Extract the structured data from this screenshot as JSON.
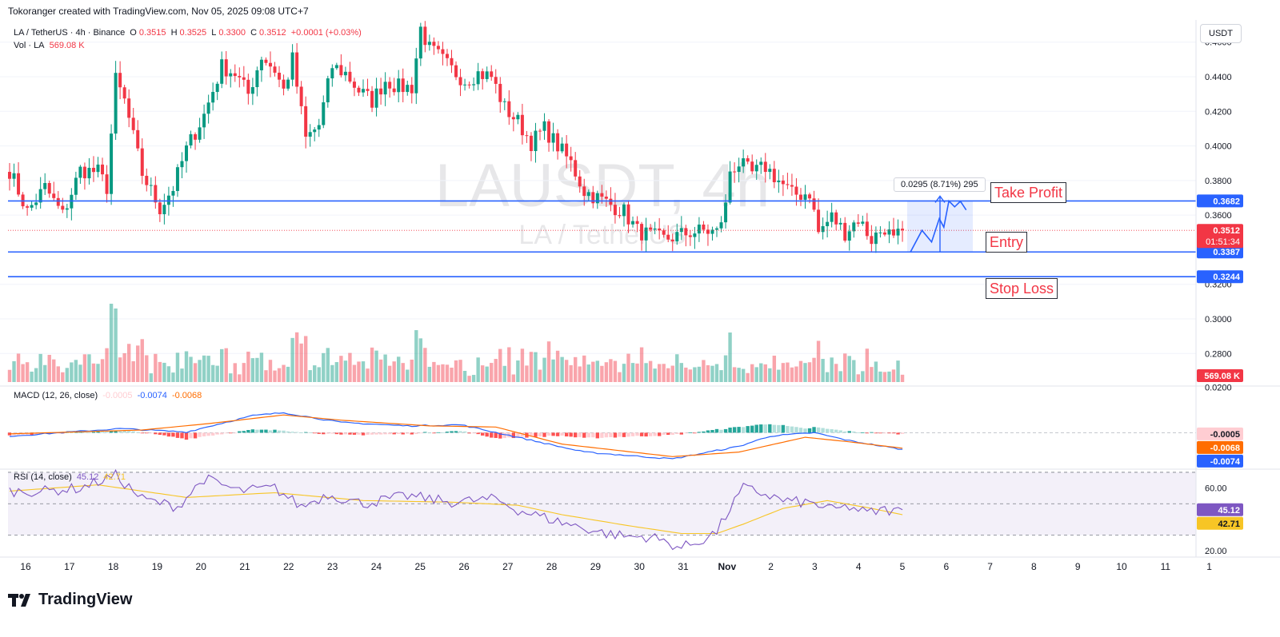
{
  "header": {
    "created_line": "Tokoranger created with TradingView.com, Nov 05, 2025 09:08 UTC+7",
    "symbol_line": "LA / TetherUS · 4h · Binance",
    "o_label": "O",
    "o_value": "0.3515",
    "h_label": "H",
    "h_value": "0.3525",
    "l_label": "L",
    "l_value": "0.3300",
    "c_label": "C",
    "c_value": "0.3512",
    "change": "+0.0001 (+0.03%)",
    "vol_label": "Vol · LA",
    "vol_value": "569.08 K",
    "currency_button": "USDT"
  },
  "watermark": {
    "ticker": "LAUSDT, 4h",
    "name": "LA / TetherUS"
  },
  "macd": {
    "label": "MACD (12, 26, close)",
    "hist": "-0.0005",
    "macd": "-0.0074",
    "signal": "-0.0068"
  },
  "rsi": {
    "label": "RSI (14, close)",
    "value": "45.12",
    "ma": "42.71"
  },
  "annotations": {
    "take_profit": "Take Profit",
    "entry": "Entry",
    "stop_loss": "Stop Loss",
    "measure": "0.0295 (8.71%) 295"
  },
  "brand": {
    "logo_text": "TradingView"
  },
  "colors": {
    "up": "#089981",
    "down": "#f23645",
    "level": "#2962ff",
    "macd": "#2962ff",
    "signal": "#ff6d00",
    "rsi": "#7e57c2",
    "rsi_ma": "#f7c525"
  },
  "chart_data": {
    "type": "candlestick",
    "timeframe": "4h",
    "y_ticks": [
      "0.4600",
      "0.4400",
      "0.4200",
      "0.4000",
      "0.3800",
      "0.3600",
      "0.3200",
      "0.3000",
      "0.2800"
    ],
    "x_ticks": [
      "16",
      "17",
      "18",
      "19",
      "20",
      "21",
      "22",
      "23",
      "24",
      "25",
      "26",
      "27",
      "28",
      "29",
      "30",
      "31",
      "Nov",
      "2",
      "3",
      "4",
      "5",
      "6",
      "7",
      "8",
      "9",
      "10",
      "11",
      "1"
    ],
    "ylim": [
      0.2635,
      0.4705
    ],
    "levels": [
      {
        "name": "Take Profit",
        "value": 0.3682,
        "label": "0.3682"
      },
      {
        "name": "Entry",
        "value": 0.3387,
        "label": "0.3387"
      },
      {
        "name": "Stop Loss",
        "value": 0.3244,
        "label": "0.3244"
      }
    ],
    "last_price": {
      "value": 0.3512,
      "label": "0.3512",
      "countdown": "01:51:34"
    },
    "volume_label": "569.08 K",
    "anchors": [
      [
        0,
        0.386
      ],
      [
        4,
        0.362
      ],
      [
        8,
        0.376
      ],
      [
        12,
        0.36
      ],
      [
        16,
        0.386
      ],
      [
        20,
        0.385
      ],
      [
        22,
        0.376
      ],
      [
        24,
        0.438
      ],
      [
        26,
        0.426
      ],
      [
        30,
        0.384
      ],
      [
        34,
        0.364
      ],
      [
        37,
        0.376
      ],
      [
        40,
        0.398
      ],
      [
        44,
        0.418
      ],
      [
        48,
        0.446
      ],
      [
        51,
        0.442
      ],
      [
        54,
        0.43
      ],
      [
        57,
        0.452
      ],
      [
        60,
        0.444
      ],
      [
        62,
        0.432
      ],
      [
        64,
        0.45
      ],
      [
        67,
        0.404
      ],
      [
        70,
        0.412
      ],
      [
        73,
        0.446
      ],
      [
        76,
        0.442
      ],
      [
        79,
        0.432
      ],
      [
        82,
        0.426
      ],
      [
        85,
        0.438
      ],
      [
        88,
        0.434
      ],
      [
        91,
        0.434
      ],
      [
        93,
        0.468
      ],
      [
        95,
        0.456
      ],
      [
        97,
        0.452
      ],
      [
        100,
        0.444
      ],
      [
        103,
        0.438
      ],
      [
        106,
        0.442
      ],
      [
        109,
        0.44
      ],
      [
        112,
        0.422
      ],
      [
        115,
        0.414
      ],
      [
        118,
        0.402
      ],
      [
        121,
        0.41
      ],
      [
        124,
        0.4
      ],
      [
        127,
        0.39
      ],
      [
        130,
        0.374
      ],
      [
        133,
        0.37
      ],
      [
        136,
        0.366
      ],
      [
        139,
        0.362
      ],
      [
        142,
        0.351
      ],
      [
        145,
        0.348
      ],
      [
        148,
        0.346
      ],
      [
        151,
        0.348
      ],
      [
        154,
        0.35
      ],
      [
        157,
        0.351
      ],
      [
        160,
        0.35
      ],
      [
        162,
        0.365
      ],
      [
        163,
        0.386
      ],
      [
        165,
        0.39
      ],
      [
        168,
        0.384
      ],
      [
        171,
        0.388
      ],
      [
        174,
        0.38
      ],
      [
        177,
        0.372
      ],
      [
        179,
        0.372
      ],
      [
        181,
        0.373
      ],
      [
        183,
        0.35
      ],
      [
        186,
        0.359
      ],
      [
        189,
        0.35
      ],
      [
        192,
        0.358
      ],
      [
        195,
        0.346
      ],
      [
        198,
        0.353
      ],
      [
        200,
        0.345
      ],
      [
        202,
        0.351
      ]
    ],
    "candle_count": 203,
    "projection": [
      [
        0,
        0.3387
      ],
      [
        0.3,
        0.3512
      ],
      [
        0.55,
        0.3445
      ],
      [
        0.75,
        0.358
      ],
      [
        0.87,
        0.353
      ],
      [
        1,
        0.3682
      ],
      [
        1.15,
        0.3648
      ],
      [
        1.3,
        0.368
      ],
      [
        1.45,
        0.363
      ]
    ],
    "macd_anchors": [
      [
        0,
        -0.0015
      ],
      [
        25,
        0.0018
      ],
      [
        40,
        0.0003
      ],
      [
        55,
        0.0075
      ],
      [
        62,
        0.0088
      ],
      [
        75,
        0.0045
      ],
      [
        90,
        0.003
      ],
      [
        102,
        0.0035
      ],
      [
        115,
        -0.002
      ],
      [
        130,
        -0.0085
      ],
      [
        150,
        -0.0115
      ],
      [
        165,
        -0.006
      ],
      [
        172,
        -0.0015
      ],
      [
        182,
        0.0
      ],
      [
        190,
        -0.0035
      ],
      [
        202,
        -0.0074
      ]
    ],
    "signal_anchors": [
      [
        0,
        -0.0005
      ],
      [
        30,
        0.0012
      ],
      [
        45,
        0.004
      ],
      [
        62,
        0.0078
      ],
      [
        75,
        0.0055
      ],
      [
        95,
        0.003
      ],
      [
        110,
        0.0025
      ],
      [
        125,
        -0.005
      ],
      [
        150,
        -0.0105
      ],
      [
        165,
        -0.0085
      ],
      [
        180,
        -0.002
      ],
      [
        190,
        -0.004
      ],
      [
        202,
        -0.0068
      ]
    ],
    "rsi_anchors": [
      [
        0,
        58
      ],
      [
        8,
        58
      ],
      [
        16,
        60
      ],
      [
        24,
        68
      ],
      [
        30,
        53
      ],
      [
        38,
        48
      ],
      [
        44,
        66
      ],
      [
        52,
        58
      ],
      [
        60,
        60
      ],
      [
        66,
        48
      ],
      [
        72,
        56
      ],
      [
        80,
        50
      ],
      [
        90,
        55
      ],
      [
        100,
        51
      ],
      [
        110,
        53
      ],
      [
        115,
        46
      ],
      [
        125,
        38
      ],
      [
        135,
        31
      ],
      [
        140,
        29
      ],
      [
        145,
        29
      ],
      [
        148,
        26
      ],
      [
        152,
        22
      ],
      [
        156,
        26
      ],
      [
        160,
        32
      ],
      [
        163,
        47
      ],
      [
        166,
        60
      ],
      [
        170,
        57
      ],
      [
        175,
        52
      ],
      [
        182,
        50
      ],
      [
        186,
        46
      ],
      [
        190,
        48
      ],
      [
        194,
        44
      ],
      [
        198,
        46
      ],
      [
        202,
        45
      ]
    ],
    "rsi_ma_anchors": [
      [
        0,
        58
      ],
      [
        20,
        62
      ],
      [
        40,
        54
      ],
      [
        60,
        57
      ],
      [
        80,
        52
      ],
      [
        100,
        51
      ],
      [
        115,
        49
      ],
      [
        125,
        43
      ],
      [
        140,
        36
      ],
      [
        152,
        31
      ],
      [
        160,
        31
      ],
      [
        166,
        37
      ],
      [
        175,
        47
      ],
      [
        185,
        52
      ],
      [
        195,
        47
      ],
      [
        202,
        43
      ]
    ],
    "macd_ticks": [
      "0.0200"
    ],
    "macd_ylim": [
      -0.0146,
      0.0205
    ],
    "rsi_ticks": [
      "60.00",
      "20.00"
    ],
    "rsi_band": [
      30,
      70
    ],
    "rsi_ylim": [
      16,
      72
    ],
    "macd_labels": {
      "hist": "-0.0005",
      "signal": "-0.0068",
      "macd": "-0.0074"
    },
    "rsi_labels": {
      "value": "45.12",
      "ma": "42.71"
    }
  }
}
